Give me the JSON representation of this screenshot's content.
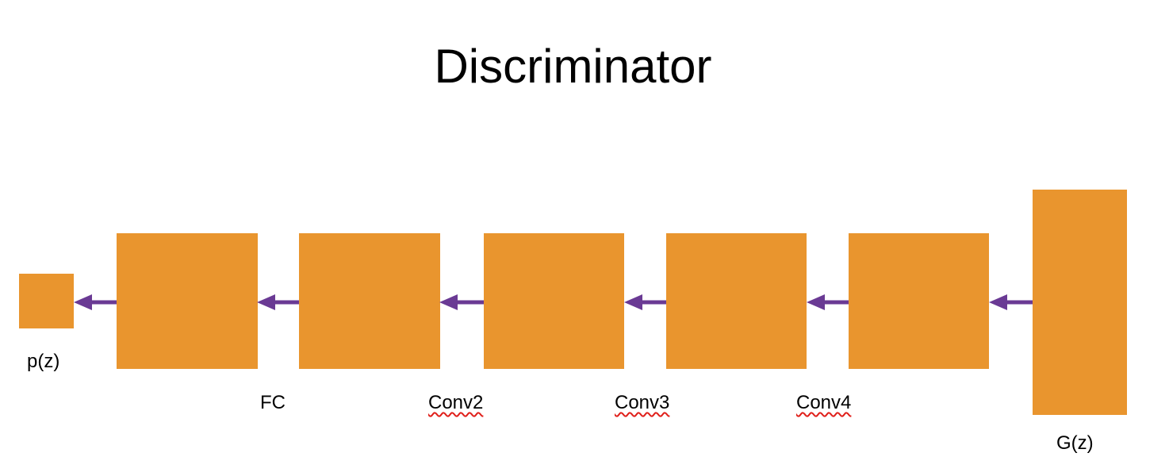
{
  "diagram": {
    "title": "Discriminator",
    "colors": {
      "block": "#E9952E",
      "arrow": "#6A3A94",
      "spellcheck_underline": "#e0201b",
      "background": "#ffffff"
    },
    "labels": {
      "output": "p(z)",
      "fc": "FC",
      "conv2": "Conv2",
      "conv3": "Conv3",
      "conv4": "Conv4",
      "input": "G(z)"
    },
    "flow_direction": "right-to-left"
  }
}
